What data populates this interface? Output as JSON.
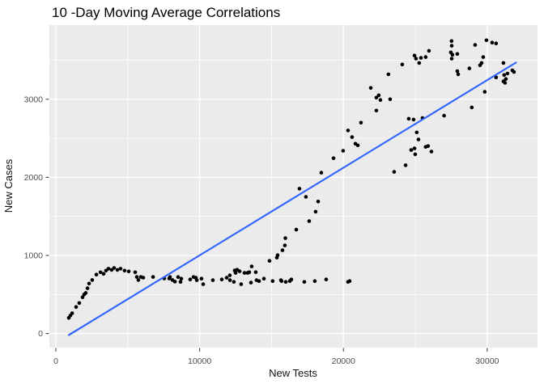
{
  "title": "10 -Day Moving Average Correlations",
  "colors": {
    "page_bg": "#ffffff",
    "panel_bg": "#ebebeb",
    "grid_major": "#ffffff",
    "grid_minor": "#ffffff",
    "point": "#000000",
    "regression_line": "#3366ff",
    "tick_mark": "#333333",
    "axis_text": "#4d4d4d",
    "title_text": "#000000"
  },
  "chart_data": {
    "type": "scatter",
    "title": "10 -Day Moving Average Correlations",
    "xlabel": "New Tests",
    "ylabel": "New Cases",
    "xlim": [
      -450,
      33500
    ],
    "ylim": [
      -180,
      3950
    ],
    "x_ticks": [
      0,
      10000,
      20000,
      30000
    ],
    "y_ticks": [
      0,
      1000,
      2000,
      3000
    ],
    "x_minor_ticks": [
      5000,
      15000,
      25000
    ],
    "y_minor_ticks": [
      500,
      1500,
      2500,
      3500
    ],
    "grid": true,
    "legend": false,
    "regression_line": {
      "x1": 900,
      "y1": -20,
      "x2": 32000,
      "y2": 3470
    },
    "points": [
      [
        900,
        200
      ],
      [
        1010,
        230
      ],
      [
        1130,
        260
      ],
      [
        1410,
        340
      ],
      [
        1630,
        390
      ],
      [
        1860,
        465
      ],
      [
        1970,
        500
      ],
      [
        2080,
        520
      ],
      [
        2200,
        580
      ],
      [
        2310,
        640
      ],
      [
        2530,
        685
      ],
      [
        2820,
        755
      ],
      [
        3100,
        785
      ],
      [
        3320,
        765
      ],
      [
        3490,
        805
      ],
      [
        3660,
        830
      ],
      [
        3880,
        815
      ],
      [
        4050,
        840
      ],
      [
        4280,
        815
      ],
      [
        4500,
        830
      ],
      [
        4780,
        805
      ],
      [
        5070,
        795
      ],
      [
        5520,
        785
      ],
      [
        5630,
        725
      ],
      [
        5740,
        685
      ],
      [
        5910,
        725
      ],
      [
        6080,
        715
      ],
      [
        6760,
        725
      ],
      [
        7540,
        705
      ],
      [
        7880,
        705
      ],
      [
        7940,
        724
      ],
      [
        8110,
        685
      ],
      [
        8280,
        665
      ],
      [
        8500,
        724
      ],
      [
        8670,
        662
      ],
      [
        8730,
        703
      ],
      [
        9340,
        693
      ],
      [
        9570,
        724
      ],
      [
        9740,
        714
      ],
      [
        9800,
        683
      ],
      [
        10130,
        703
      ],
      [
        10250,
        631
      ],
      [
        10920,
        683
      ],
      [
        11540,
        693
      ],
      [
        11880,
        714
      ],
      [
        12100,
        745
      ],
      [
        12110,
        683
      ],
      [
        12380,
        662
      ],
      [
        12440,
        807
      ],
      [
        12500,
        776
      ],
      [
        12610,
        817
      ],
      [
        12780,
        797
      ],
      [
        12890,
        631
      ],
      [
        13120,
        776
      ],
      [
        13340,
        776
      ],
      [
        13450,
        786
      ],
      [
        13570,
        652
      ],
      [
        13620,
        859
      ],
      [
        13900,
        786
      ],
      [
        13960,
        683
      ],
      [
        14130,
        672
      ],
      [
        14470,
        703
      ],
      [
        14860,
        931
      ],
      [
        15080,
        672
      ],
      [
        15370,
        972
      ],
      [
        15420,
        1003
      ],
      [
        15650,
        683
      ],
      [
        15700,
        672
      ],
      [
        15760,
        1066
      ],
      [
        15930,
        1128
      ],
      [
        15990,
        662
      ],
      [
        15960,
        1221
      ],
      [
        16270,
        672
      ],
      [
        16380,
        693
      ],
      [
        16720,
        1330
      ],
      [
        16940,
        1855
      ],
      [
        17280,
        662
      ],
      [
        17390,
        1750
      ],
      [
        17620,
        1440
      ],
      [
        18010,
        672
      ],
      [
        18070,
        1560
      ],
      [
        18240,
        1690
      ],
      [
        18460,
        2060
      ],
      [
        18800,
        693
      ],
      [
        19310,
        2245
      ],
      [
        19980,
        2340
      ],
      [
        20320,
        662
      ],
      [
        20430,
        672
      ],
      [
        20320,
        2600
      ],
      [
        20600,
        2515
      ],
      [
        20830,
        2430
      ],
      [
        21000,
        2410
      ],
      [
        21220,
        2700
      ],
      [
        21900,
        3145
      ],
      [
        22290,
        2855
      ],
      [
        22290,
        3020
      ],
      [
        22460,
        3050
      ],
      [
        22570,
        2990
      ],
      [
        23130,
        3320
      ],
      [
        23250,
        3000
      ],
      [
        23530,
        2070
      ],
      [
        24090,
        3445
      ],
      [
        24320,
        2155
      ],
      [
        24540,
        2750
      ],
      [
        24710,
        2350
      ],
      [
        24880,
        2740
      ],
      [
        24940,
        2370
      ],
      [
        24940,
        3560
      ],
      [
        24990,
        2295
      ],
      [
        25050,
        3520
      ],
      [
        25100,
        2575
      ],
      [
        25220,
        2485
      ],
      [
        25270,
        3465
      ],
      [
        25390,
        3530
      ],
      [
        25500,
        2760
      ],
      [
        25720,
        3540
      ],
      [
        25720,
        2390
      ],
      [
        25890,
        2400
      ],
      [
        25950,
        3620
      ],
      [
        26120,
        2330
      ],
      [
        27000,
        2790
      ],
      [
        27470,
        3600
      ],
      [
        27520,
        3745
      ],
      [
        27530,
        3685
      ],
      [
        27530,
        3520
      ],
      [
        27580,
        3570
      ],
      [
        27920,
        3580
      ],
      [
        27920,
        3360
      ],
      [
        27980,
        3320
      ],
      [
        28760,
        3395
      ],
      [
        28930,
        2895
      ],
      [
        29160,
        3695
      ],
      [
        29500,
        3435
      ],
      [
        29610,
        3465
      ],
      [
        29720,
        3540
      ],
      [
        29830,
        3095
      ],
      [
        29950,
        3755
      ],
      [
        30340,
        3725
      ],
      [
        30620,
        3715
      ],
      [
        30620,
        3280
      ],
      [
        31130,
        3465
      ],
      [
        31130,
        3230
      ],
      [
        31180,
        3310
      ],
      [
        31240,
        3210
      ],
      [
        31300,
        3260
      ],
      [
        31410,
        3330
      ],
      [
        31750,
        3370
      ],
      [
        31860,
        3350
      ]
    ]
  }
}
